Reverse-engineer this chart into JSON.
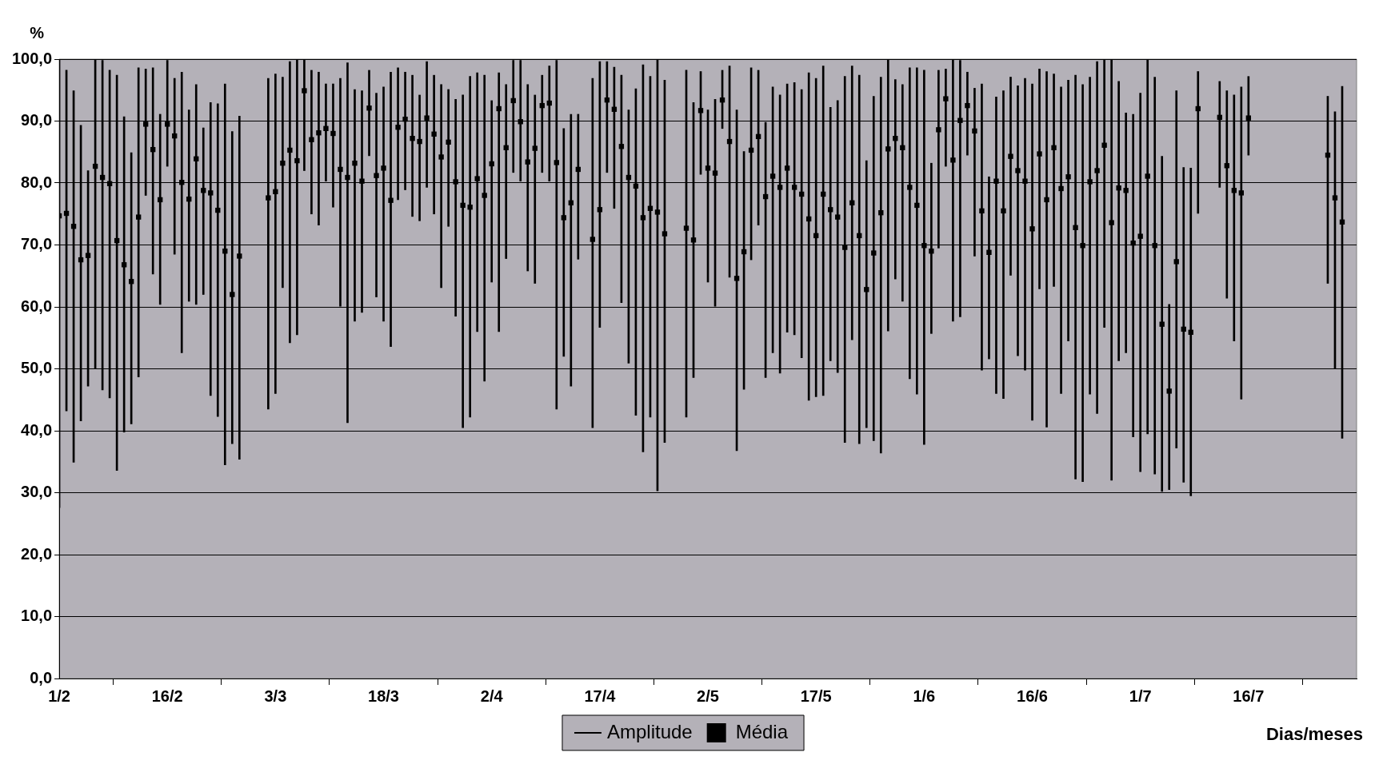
{
  "chart_data": {
    "type": "bar",
    "ylabel": "%",
    "xlabel": "Dias/meses",
    "x": [
      "--02-01",
      "--02-02",
      "--02-03",
      "--02-04",
      "--02-05",
      "--02-06",
      "--02-07",
      "--02-08",
      "--02-09",
      "--02-10",
      "--02-11",
      "--02-12",
      "--02-13",
      "--02-14",
      "--02-15",
      "--02-16",
      "--02-17",
      "--02-18",
      "--02-19",
      "--02-20",
      "--02-21",
      "--02-22",
      "--02-23",
      "--02-24",
      "--02-25",
      "--02-26",
      "--03-02",
      "--03-03",
      "--03-04",
      "--03-05",
      "--03-06",
      "--03-07",
      "--03-08",
      "--03-09",
      "--03-10",
      "--03-11",
      "--03-12",
      "--03-13",
      "--03-14",
      "--03-15",
      "--03-16",
      "--03-17",
      "--03-18",
      "--03-19",
      "--03-20",
      "--03-21",
      "--03-22",
      "--03-23",
      "--03-24",
      "--03-25",
      "--03-26",
      "--03-27",
      "--03-28",
      "--03-29",
      "--03-30",
      "--03-31",
      "--04-01",
      "--04-02",
      "--04-03",
      "--04-04",
      "--04-05",
      "--04-06",
      "--04-07",
      "--04-08",
      "--04-09",
      "--04-10",
      "--04-11",
      "--04-12",
      "--04-13",
      "--04-14",
      "--04-16",
      "--04-17",
      "--04-18",
      "--04-19",
      "--04-20",
      "--04-21",
      "--04-22",
      "--04-23",
      "--04-24",
      "--04-25",
      "--04-26",
      "--04-29",
      "--04-30",
      "--05-01",
      "--05-02",
      "--05-03",
      "--05-04",
      "--05-05",
      "--05-06",
      "--05-07",
      "--05-08",
      "--05-09",
      "--05-10",
      "--05-11",
      "--05-12",
      "--05-13",
      "--05-14",
      "--05-15",
      "--05-16",
      "--05-17",
      "--05-18",
      "--05-19",
      "--05-20",
      "--05-21",
      "--05-22",
      "--05-23",
      "--05-24",
      "--05-25",
      "--05-26",
      "--05-27",
      "--05-28",
      "--05-29",
      "--05-30",
      "--05-31",
      "--06-01",
      "--06-02",
      "--06-03",
      "--06-04",
      "--06-05",
      "--06-06",
      "--06-07",
      "--06-08",
      "--06-09",
      "--06-10",
      "--06-11",
      "--06-12",
      "--06-13",
      "--06-14",
      "--06-15",
      "--06-16",
      "--06-17",
      "--06-18",
      "--06-19",
      "--06-20",
      "--06-21",
      "--06-22",
      "--06-23",
      "--06-24",
      "--06-25",
      "--06-26",
      "--06-27",
      "--06-28",
      "--06-29",
      "--06-30",
      "--07-01",
      "--07-02",
      "--07-03",
      "--07-04",
      "--07-05",
      "--07-06",
      "--07-07",
      "--07-08",
      "--07-09",
      "--07-12",
      "--07-13",
      "--07-14",
      "--07-15",
      "--07-16",
      "--07-27",
      "--07-28",
      "--07-29"
    ],
    "series": [
      {
        "name": "Amplitude",
        "color": "#000000",
        "base": [
          27.6,
          43.2,
          34.9,
          41.6,
          47.2,
          50.1,
          46.6,
          45.3,
          33.6,
          39.8,
          41.1,
          48.7,
          78.0,
          65.3,
          60.4,
          82.7,
          68.5,
          52.6,
          60.9,
          60.4,
          62.0,
          45.7,
          42.3,
          34.5,
          37.9,
          35.4,
          43.5,
          46.0,
          63.1,
          54.2,
          55.5,
          82.0,
          75.0,
          73.2,
          80.3,
          76.1,
          60.1,
          41.3,
          57.7,
          59.1,
          84.4,
          61.6,
          57.7,
          53.6,
          77.3,
          78.9,
          74.6,
          73.9,
          79.3,
          75.0,
          63.1,
          73.0,
          58.5,
          40.5,
          42.2,
          56.0,
          48.0,
          64.0,
          56.0,
          67.8,
          81.7,
          80.3,
          65.8,
          63.8,
          81.7,
          80.3,
          43.5,
          52.0,
          47.2,
          67.7,
          40.5,
          56.7,
          81.7,
          75.9,
          60.7,
          50.9,
          42.5,
          36.6,
          42.2,
          30.3,
          38.1,
          42.2,
          48.6,
          81.4,
          64.0,
          60.1,
          88.8,
          64.8,
          36.8,
          46.7,
          67.6,
          73.2,
          48.6,
          52.6,
          49.3,
          55.9,
          55.5,
          51.8,
          44.9,
          45.5,
          45.7,
          51.3,
          49.4,
          38.1,
          54.7,
          37.9,
          40.5,
          38.4,
          36.4,
          56.1,
          64.5,
          60.9,
          48.4,
          45.9,
          37.8,
          55.7,
          69.5,
          82.7,
          57.7,
          58.4,
          84.5,
          68.2,
          49.8,
          51.6,
          46.0,
          45.2,
          65.1,
          52.1,
          49.8,
          41.7,
          62.9,
          40.6,
          63.3,
          46.0,
          54.5,
          32.2,
          31.8,
          45.9,
          42.8,
          56.7,
          32.0,
          51.3,
          52.6,
          39.0,
          33.4,
          39.5,
          33.0,
          30.2,
          30.5,
          37.2,
          31.7,
          29.5,
          75.1,
          79.3,
          61.4,
          54.5,
          45.1,
          84.5,
          63.8,
          50.1,
          38.8
        ],
        "values": [
          72.4,
          55.0,
          60.0,
          47.7,
          34.8,
          49.9,
          53.2,
          52.9,
          63.8,
          50.9,
          43.8,
          49.9,
          20.4,
          33.3,
          30.7,
          17.1,
          28.4,
          45.3,
          30.9,
          35.5,
          26.9,
          47.3,
          50.5,
          61.5,
          50.4,
          55.4,
          53.4,
          51.6,
          34.0,
          45.4,
          44.4,
          18.0,
          23.2,
          24.7,
          15.7,
          19.9,
          36.8,
          58.1,
          37.4,
          35.8,
          13.8,
          32.9,
          37.8,
          44.3,
          21.3,
          19.0,
          22.8,
          20.3,
          20.3,
          22.4,
          32.8,
          22.1,
          35.0,
          53.7,
          55.0,
          41.8,
          49.4,
          29.3,
          41.8,
          28.1,
          18.1,
          19.5,
          30.1,
          30.4,
          15.7,
          18.6,
          56.3,
          36.8,
          43.9,
          23.4,
          56.4,
          42.9,
          17.9,
          22.8,
          36.7,
          40.9,
          52.7,
          62.5,
          55.0,
          69.7,
          58.5,
          56.0,
          44.4,
          16.6,
          27.8,
          33.4,
          9.4,
          34.1,
          55.0,
          38.4,
          31.0,
          25.0,
          41.2,
          42.9,
          44.9,
          40.1,
          40.7,
          43.3,
          52.9,
          51.4,
          53.2,
          40.9,
          43.9,
          59.1,
          44.2,
          59.5,
          43.1,
          55.6,
          60.7,
          43.9,
          32.2,
          35.0,
          50.2,
          52.7,
          60.4,
          27.5,
          28.7,
          15.7,
          42.3,
          41.4,
          13.4,
          27.1,
          46.2,
          29.4,
          47.9,
          49.7,
          32.0,
          43.6,
          47.1,
          54.3,
          35.5,
          57.4,
          34.3,
          49.5,
          42.1,
          65.2,
          64.1,
          51.2,
          56.8,
          43.3,
          68.0,
          45.1,
          38.7,
          52.1,
          61.1,
          60.4,
          64.1,
          54.1,
          29.9,
          57.7,
          50.8,
          52.9,
          22.9,
          17.1,
          33.5,
          39.7,
          50.4,
          12.7,
          30.2,
          41.4,
          56.8
        ]
      },
      {
        "name": "Média",
        "type": "scatter",
        "color": "#000000",
        "marker": "square",
        "values": [
          74.7,
          75.1,
          73.0,
          67.6,
          68.3,
          82.7,
          80.9,
          79.9,
          70.7,
          66.8,
          64.1,
          74.5,
          89.5,
          85.4,
          77.3,
          89.5,
          87.6,
          80.1,
          77.4,
          83.9,
          78.8,
          78.4,
          75.6,
          69.0,
          62.0,
          68.2,
          77.6,
          78.6,
          83.2,
          85.3,
          83.6,
          94.9,
          87.0,
          88.1,
          88.8,
          88.0,
          82.2,
          80.9,
          83.2,
          80.3,
          92.1,
          81.2,
          82.4,
          77.2,
          89.0,
          90.3,
          87.2,
          86.7,
          90.5,
          87.9,
          84.2,
          86.6,
          80.2,
          76.4,
          76.1,
          80.7,
          78.0,
          83.1,
          92.0,
          85.7,
          93.3,
          89.9,
          83.4,
          85.6,
          92.5,
          92.9,
          83.3,
          74.4,
          76.8,
          82.2,
          70.9,
          75.7,
          93.4,
          91.9,
          85.9,
          80.9,
          79.5,
          74.4,
          75.9,
          75.3,
          71.8,
          72.7,
          70.8,
          91.7,
          82.4,
          81.6,
          93.4,
          86.7,
          64.6,
          68.9,
          85.3,
          87.5,
          77.8,
          81.1,
          79.3,
          82.4,
          79.3,
          78.2,
          74.2,
          71.5,
          78.2,
          75.7,
          74.5,
          69.6,
          76.8,
          71.5,
          62.8,
          68.7,
          75.2,
          85.5,
          87.2,
          85.7,
          79.3,
          76.4,
          69.9,
          69.0,
          88.6,
          93.6,
          83.7,
          90.1,
          92.5,
          88.4,
          75.5,
          68.8,
          80.3,
          75.5,
          84.3,
          82.0,
          80.3,
          72.6,
          84.7,
          77.3,
          85.7,
          79.1,
          81.0,
          72.8,
          69.9,
          80.2,
          82.0,
          86.1,
          73.6,
          79.2,
          78.8,
          70.3,
          71.4,
          81.1,
          69.9,
          57.2,
          46.4,
          67.3,
          56.4,
          55.9,
          92.0,
          90.6,
          82.8,
          78.8,
          78.4,
          90.5,
          84.5,
          77.6,
          73.7
        ]
      }
    ],
    "xlim": [
      "--02-01",
      "--07-31"
    ],
    "xticks": [
      {
        "value": "--02-01",
        "label": "1/2"
      },
      {
        "value": "--02-16",
        "label": "16/2"
      },
      {
        "value": "--03-03",
        "label": "3/3"
      },
      {
        "value": "--03-18",
        "label": "18/3"
      },
      {
        "value": "--04-02",
        "label": "2/4"
      },
      {
        "value": "--04-17",
        "label": "17/4"
      },
      {
        "value": "--05-02",
        "label": "2/5"
      },
      {
        "value": "--05-17",
        "label": "17/5"
      },
      {
        "value": "--06-01",
        "label": "1/6"
      },
      {
        "value": "--06-16",
        "label": "16/6"
      },
      {
        "value": "--07-01",
        "label": "1/7"
      },
      {
        "value": "--07-16",
        "label": "16/7"
      },
      {
        "value": "--07-31",
        "label": null
      }
    ],
    "ylim": [
      0,
      100
    ],
    "yticks": [
      {
        "value": 0,
        "label": "0,0"
      },
      {
        "value": 10,
        "label": "10,0"
      },
      {
        "value": 20,
        "label": "20,0"
      },
      {
        "value": 30,
        "label": "30,0"
      },
      {
        "value": 40,
        "label": "40,0"
      },
      {
        "value": 50,
        "label": "50,0"
      },
      {
        "value": 60,
        "label": "60,0"
      },
      {
        "value": 70,
        "label": "70,0"
      },
      {
        "value": 80,
        "label": "80,0"
      },
      {
        "value": 90,
        "label": "90,0"
      },
      {
        "value": 100,
        "label": "100,0"
      }
    ],
    "grid": "y",
    "legend": "bottom"
  }
}
